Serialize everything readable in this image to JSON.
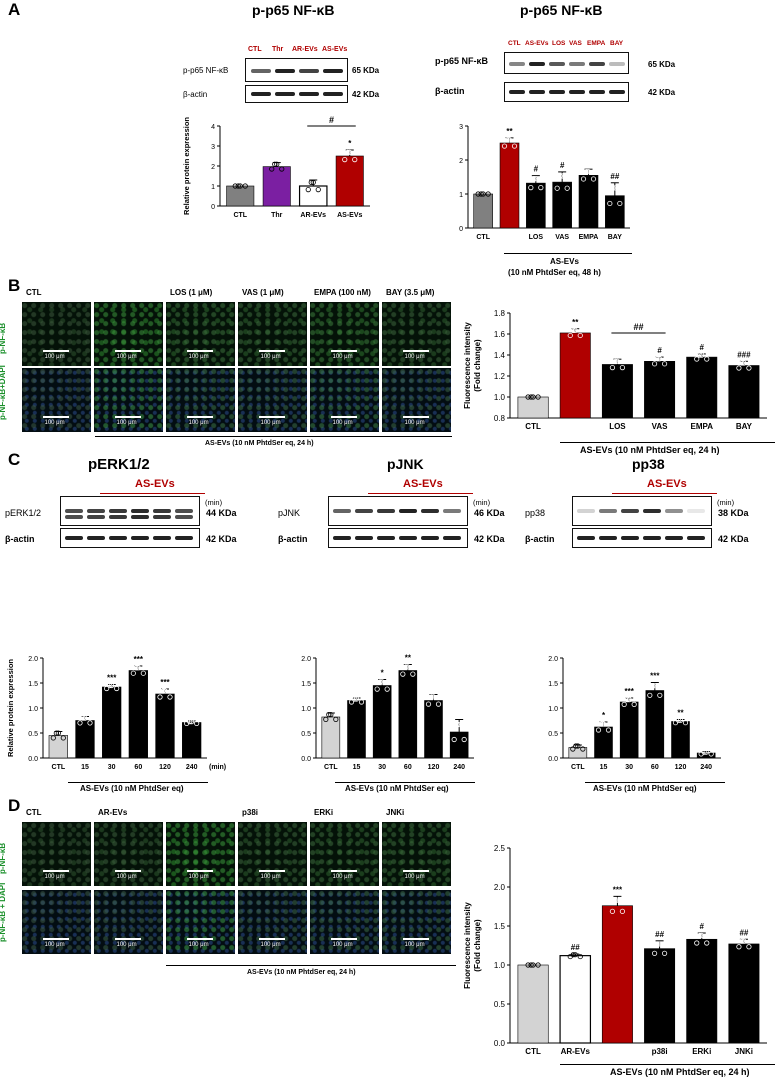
{
  "panel_labels": {
    "A": "A",
    "B": "B",
    "C": "C",
    "D": "D"
  },
  "panelA": {
    "left_title": "p-p65 NF-κB",
    "right_title": "p-p65 NF-κB",
    "left_blot": {
      "lanes": [
        "CTL",
        "Thr",
        "AR-EVs",
        "AS-EVs"
      ],
      "row1_label": "p-p65 NF-κB",
      "row2_label": "β-actin",
      "row1_kda": "65 KDa",
      "row2_kda": "42 KDa"
    },
    "right_blot": {
      "lanes": [
        "CTL",
        "AS-EVs",
        "LOS",
        "VAS",
        "EMPA",
        "BAY"
      ],
      "row1_label": "p-p65 NF-κB",
      "row2_label": "β-actin",
      "row1_kda": "65 KDa",
      "row2_kda": "42 KDa"
    },
    "right_group_line1": "AS-EVs",
    "right_group_line2": "(10 nM PhtdSer eq, 48 h)"
  },
  "panelB": {
    "col_labels": [
      "CTL",
      "",
      "LOS (1 μM)",
      "VAS (1 μM)",
      "EMPA (100 nM)",
      "BAY (3.5 μM)"
    ],
    "row_labels": [
      "p-NF-κB",
      "p-NF-κB+DAPI"
    ],
    "scale": "100 μm",
    "group_label": "AS-EVs (10 nM PhtdSer eq, 24 h)",
    "chart_group": "AS-EVs (10 nM PhtdSer eq, 24 h)"
  },
  "panelC": {
    "titles": [
      "pERK1/2",
      "pJNK",
      "pp38"
    ],
    "as_evs": "AS-EVs",
    "lanes": [
      "CTL",
      "15",
      "30",
      "60",
      "120",
      "240"
    ],
    "min": "(min)",
    "row1_labels": [
      "pERK1/2",
      "pJNK",
      "pp38"
    ],
    "row2_label": "β-actin",
    "row1_kda": [
      "44 KDa",
      "46 KDa",
      "38 KDa"
    ],
    "row2_kda": "42 KDa",
    "group_label": "AS-EVs (10 nM PhtdSer eq)"
  },
  "panelD": {
    "col_labels": [
      "CTL",
      "AR-EVs",
      "",
      "p38i",
      "ERKi",
      "JNKi"
    ],
    "row_labels": [
      "p-NF-κB",
      "p-NF-κB + DAPI"
    ],
    "scale": "100 μm",
    "group_label": "AS-EVs (10 nM PhtdSer eq, 24 h)",
    "chart_group": "AS-EVs (10 nM PhtdSer eq, 24 h)"
  },
  "chart_data": [
    {
      "id": "A-left",
      "type": "bar",
      "categories": [
        "CTL",
        "Thr",
        "AR-EVs",
        "AS-EVs"
      ],
      "values": [
        1.0,
        1.97,
        1.0,
        2.5
      ],
      "errors": [
        0,
        0.2,
        0.3,
        0.3
      ],
      "colors": [
        "#808080",
        "#7b1fa2",
        "#ffffff",
        "#b00000"
      ],
      "ylabel": "Relative protein expression",
      "ylim": [
        0,
        4
      ],
      "yticks": [
        0,
        1,
        2,
        3,
        4
      ],
      "annotations": [
        "",
        "",
        "",
        "*"
      ],
      "bracket": {
        "from": 2,
        "to": 3,
        "label": "#"
      }
    },
    {
      "id": "A-right",
      "type": "bar",
      "categories": [
        "CTL",
        "",
        "LOS",
        "VAS",
        "EMPA",
        "BAY"
      ],
      "values": [
        1.0,
        2.5,
        1.32,
        1.35,
        1.55,
        0.95
      ],
      "errors": [
        0,
        0.15,
        0.22,
        0.3,
        0.18,
        0.38
      ],
      "colors": [
        "#808080",
        "#b00000",
        "#000000",
        "#000000",
        "#000000",
        "#000000"
      ],
      "ylabel": "",
      "ylim": [
        0,
        3
      ],
      "yticks": [
        0,
        1,
        2,
        3
      ],
      "annotations": [
        "",
        "**",
        "#",
        "#",
        "",
        "##"
      ]
    },
    {
      "id": "B",
      "type": "bar",
      "categories": [
        "CTL",
        "",
        "LOS",
        "VAS",
        "EMPA",
        "BAY"
      ],
      "values": [
        1.0,
        1.61,
        1.31,
        1.34,
        1.38,
        1.3
      ],
      "errors": [
        0,
        0.04,
        0.05,
        0.04,
        0.03,
        0.04
      ],
      "colors": [
        "#d3d3d3",
        "#b00000",
        "#000000",
        "#000000",
        "#000000",
        "#000000"
      ],
      "ylabel": "Fluorescence intensity\n(Fold change)",
      "ylim": [
        0.8,
        1.8
      ],
      "yticks": [
        0.8,
        1.0,
        1.2,
        1.4,
        1.6,
        1.8
      ],
      "annotations": [
        "",
        "**",
        "",
        "#",
        "#",
        "###"
      ],
      "bracket": {
        "from": 2,
        "to": 3,
        "label": "##"
      }
    },
    {
      "id": "C-ERK",
      "type": "bar",
      "categories": [
        "CTL",
        "15",
        "30",
        "60",
        "120",
        "240"
      ],
      "values": [
        0.45,
        0.75,
        1.42,
        1.75,
        1.28,
        0.71
      ],
      "errors": [
        0.08,
        0.08,
        0.05,
        0.09,
        0.1,
        0.03
      ],
      "colors": [
        "#d3d3d3",
        "#000000",
        "#000000",
        "#000000",
        "#000000",
        "#000000"
      ],
      "ylabel": "Relative protein expression",
      "ylim": [
        0,
        2
      ],
      "yticks": [
        0,
        0.5,
        1.0,
        1.5,
        2.0
      ],
      "annotations": [
        "",
        "",
        "***",
        "***",
        "***",
        ""
      ],
      "xunit": "(min)"
    },
    {
      "id": "C-JNK",
      "type": "bar",
      "categories": [
        "CTL",
        "15",
        "30",
        "60",
        "120",
        "240"
      ],
      "values": [
        0.82,
        1.15,
        1.45,
        1.75,
        1.15,
        0.52
      ],
      "errors": [
        0.08,
        0.05,
        0.12,
        0.12,
        0.12,
        0.25
      ],
      "colors": [
        "#d3d3d3",
        "#000000",
        "#000000",
        "#000000",
        "#000000",
        "#000000"
      ],
      "ylabel": "",
      "ylim": [
        0,
        2
      ],
      "yticks": [
        0,
        0.5,
        1.0,
        1.5,
        2.0
      ],
      "annotations": [
        "",
        "",
        "*",
        "**",
        "",
        ""
      ]
    },
    {
      "id": "C-p38",
      "type": "bar",
      "categories": [
        "CTL",
        "15",
        "30",
        "60",
        "120",
        "240"
      ],
      "values": [
        0.21,
        0.62,
        1.12,
        1.35,
        0.73,
        0.1
      ],
      "errors": [
        0.05,
        0.1,
        0.08,
        0.16,
        0.04,
        0.03
      ],
      "colors": [
        "#d3d3d3",
        "#000000",
        "#000000",
        "#000000",
        "#000000",
        "#000000"
      ],
      "ylabel": "",
      "ylim": [
        0,
        2
      ],
      "yticks": [
        0,
        0.5,
        1.0,
        1.5,
        2.0
      ],
      "annotations": [
        "",
        "*",
        "***",
        "***",
        "**",
        ""
      ]
    },
    {
      "id": "D",
      "type": "bar",
      "categories": [
        "CTL",
        "AR-EVs",
        "",
        "p38i",
        "ERKi",
        "JNKi"
      ],
      "values": [
        1.0,
        1.12,
        1.76,
        1.21,
        1.33,
        1.27
      ],
      "errors": [
        0,
        0.02,
        0.12,
        0.1,
        0.08,
        0.06
      ],
      "colors": [
        "#d3d3d3",
        "#ffffff",
        "#b00000",
        "#000000",
        "#000000",
        "#000000"
      ],
      "ylabel": "Fluorescence intensity\n(Fold change)",
      "ylim": [
        0,
        2.5
      ],
      "yticks": [
        0,
        0.5,
        1.0,
        1.5,
        2.0,
        2.5
      ],
      "annotations": [
        "",
        "##",
        "***",
        "##",
        "#",
        "##"
      ]
    }
  ]
}
